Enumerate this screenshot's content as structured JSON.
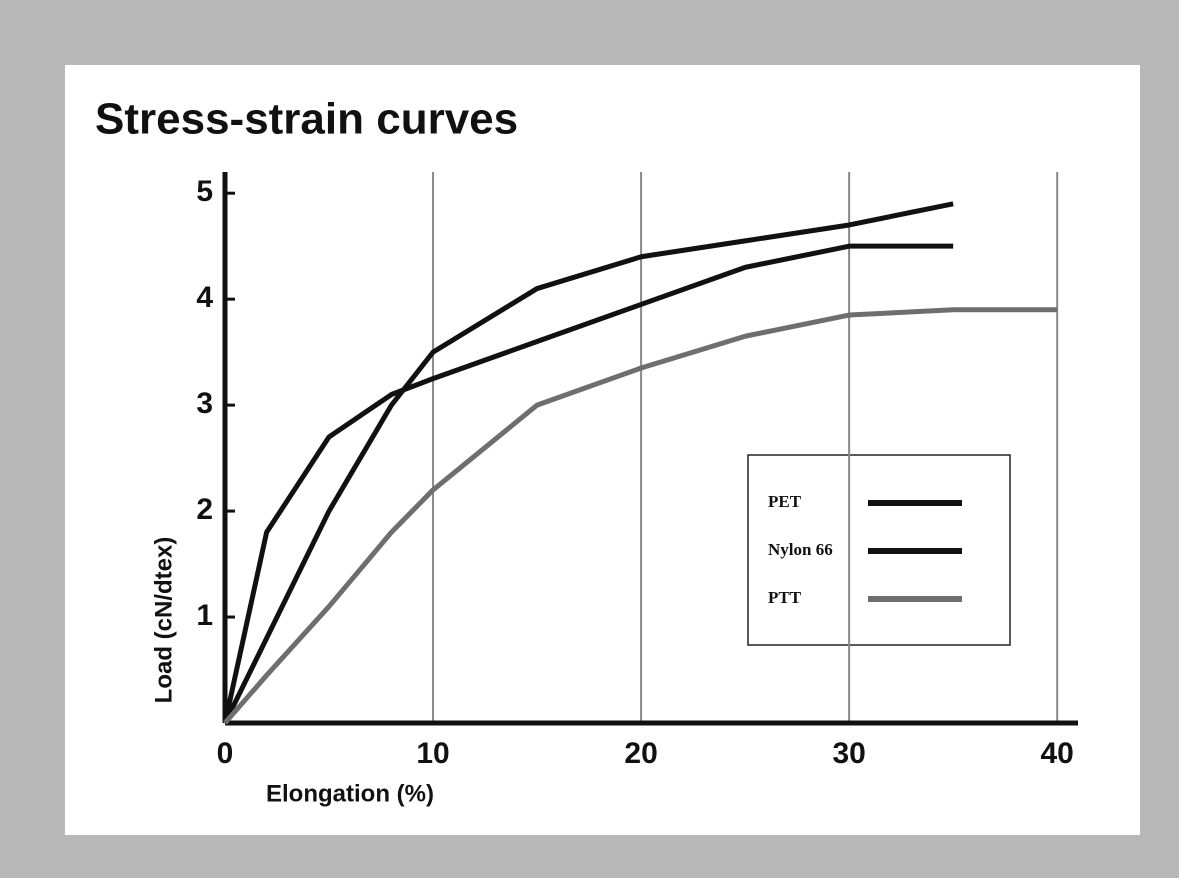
{
  "chart_data": {
    "type": "line",
    "title": "Stress-strain curves",
    "x_label": "Elongation (%)",
    "y_label": "Load (cN/dtex)",
    "x": [
      0,
      2,
      5,
      8,
      10,
      15,
      20,
      25,
      30,
      35,
      40
    ],
    "series": [
      {
        "name": "PET",
        "color": "#111111",
        "values": [
          0,
          1.8,
          2.7,
          3.1,
          3.25,
          3.6,
          3.95,
          4.3,
          4.5,
          4.5,
          null
        ]
      },
      {
        "name": "Nylon 66",
        "color": "#111111",
        "values": [
          0,
          0.8,
          2.0,
          3.0,
          3.5,
          4.1,
          4.4,
          4.55,
          4.7,
          4.9,
          null
        ]
      },
      {
        "name": "PTT",
        "color": "#6e6e6e",
        "values": [
          0,
          0.45,
          1.1,
          1.8,
          2.2,
          3.0,
          3.35,
          3.65,
          3.85,
          3.9,
          3.9
        ]
      }
    ],
    "xlim": [
      0,
      41
    ],
    "ylim": [
      0,
      5.2
    ],
    "xticks": [
      0,
      10,
      20,
      30,
      40
    ],
    "yticks": [
      1,
      2,
      3,
      4,
      5
    ],
    "grid": true
  }
}
